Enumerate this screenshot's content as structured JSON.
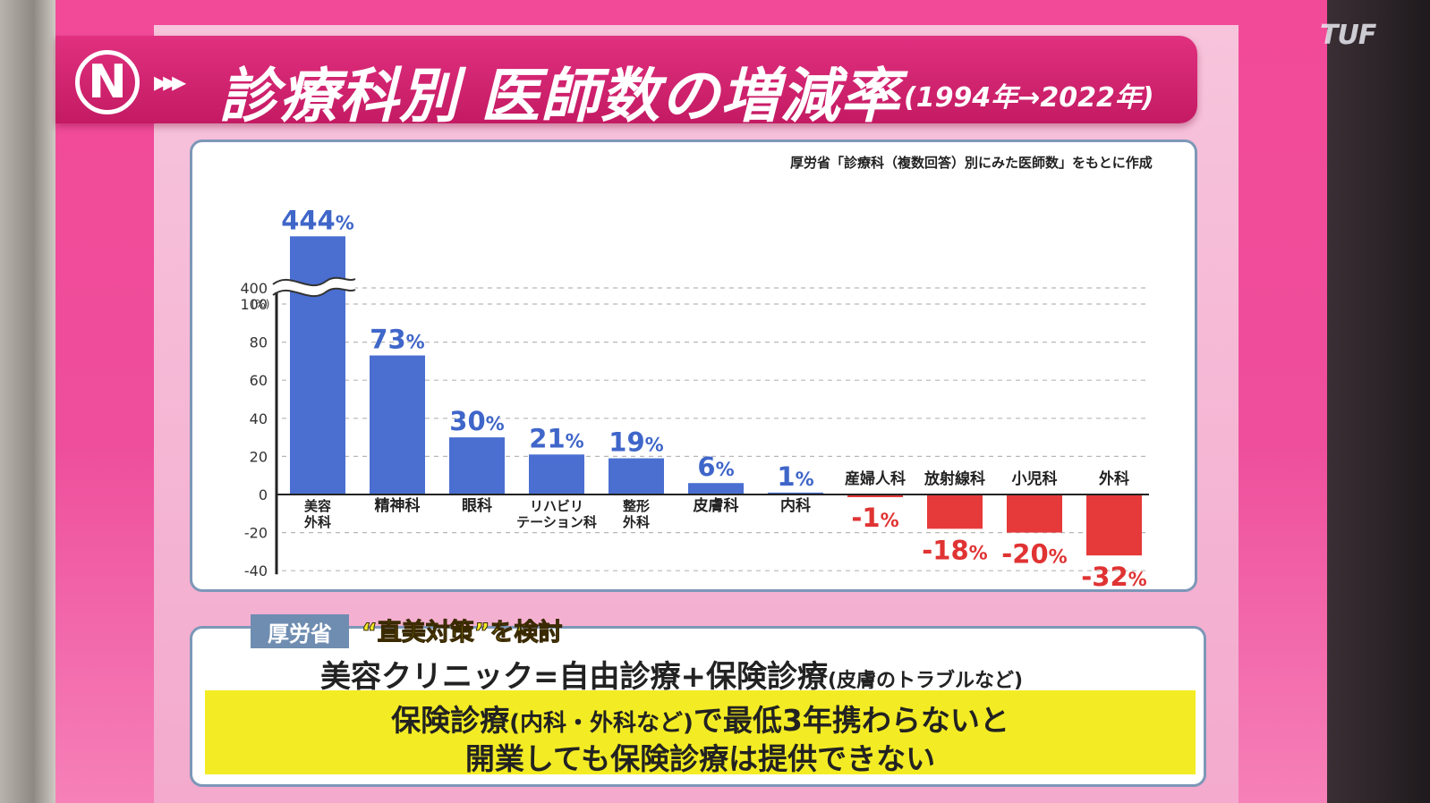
{
  "header": {
    "title": "診療科別 医師数の増減率",
    "subtitle": "(1994年→2022年)",
    "logo_letter": "N",
    "arrows": "▸▸▸",
    "broadcaster_logo": "TUF"
  },
  "source_note": "厚労省「診療科（複数回答）別にみた医師数」をもとに作成",
  "chart_data": {
    "type": "bar",
    "title": "診療科別 医師数の増減率",
    "subtitle": "(1994年→2022年)",
    "ylabel": "(%)",
    "categories": [
      "美容外科",
      "精神科",
      "眼科",
      "リハビリテーション科",
      "整形外科",
      "皮膚科",
      "内科",
      "産婦人科",
      "放射線科",
      "小児科",
      "外科"
    ],
    "category_lines": [
      [
        "美容",
        "外科"
      ],
      [
        "精神科"
      ],
      [
        "眼科"
      ],
      [
        "リハビリ",
        "テーション科"
      ],
      [
        "整形",
        "外科"
      ],
      [
        "皮膚科"
      ],
      [
        "内科"
      ],
      [
        "産婦人科"
      ],
      [
        "放射線科"
      ],
      [
        "小児科"
      ],
      [
        "外科"
      ]
    ],
    "values": [
      444,
      73,
      30,
      21,
      19,
      6,
      1,
      -1,
      -18,
      -20,
      -32
    ],
    "value_labels": [
      "444%",
      "73%",
      "30%",
      "21%",
      "19%",
      "6%",
      "1%",
      "-1%",
      "-18%",
      "-20%",
      "-32%"
    ],
    "y_ticks": [
      -40,
      -20,
      0,
      20,
      40,
      60,
      80,
      100,
      400
    ],
    "ylim": [
      -40,
      444
    ],
    "axis_break": [
      100,
      400
    ],
    "grid": true,
    "colors": {
      "positive": "#4a6fd1",
      "negative": "#e63a3a",
      "positive_label": "#3f66c9",
      "negative_label": "#e03333"
    }
  },
  "policy": {
    "agency_tag": "厚労省",
    "topic": "“直美対策”を検討",
    "formula_main": "美容クリニック=自由診療+保険診療",
    "formula_note": "(皮膚のトラブルなど)",
    "highlight_line1_a": "保険診療",
    "highlight_line1_paren": "(内科・外科など)",
    "highlight_line1_b": "で最低3年携わらないと",
    "highlight_line2": "開業しても保険診療は提供できない"
  }
}
